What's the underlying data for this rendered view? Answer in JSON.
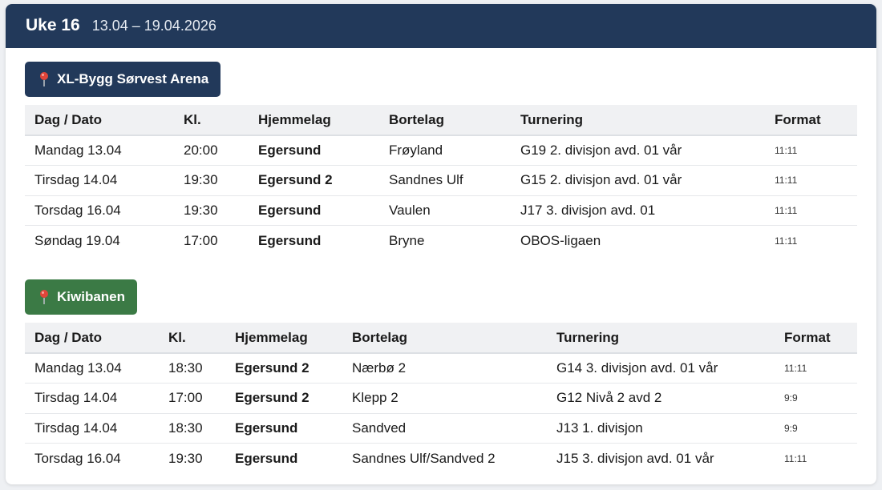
{
  "header": {
    "week": "Uke 16",
    "dates": "13.04 – 19.04.2026"
  },
  "venues": [
    {
      "name": "XL-Bygg Sørvest Arena",
      "color": "#22395a",
      "columns": [
        "Dag / Dato",
        "Kl.",
        "Hjemmelag",
        "Bortelag",
        "Turnering",
        "Format"
      ],
      "rows": [
        {
          "date": "Mandag 13.04",
          "time": "20:00",
          "home": "Egersund",
          "away": "Frøyland",
          "tournament": "G19 2. divisjon avd. 01 vår",
          "format": "11:11"
        },
        {
          "date": "Tirsdag 14.04",
          "time": "19:30",
          "home": "Egersund 2",
          "away": "Sandnes Ulf",
          "tournament": "G15 2. divisjon avd. 01 vår",
          "format": "11:11"
        },
        {
          "date": "Torsdag 16.04",
          "time": "19:30",
          "home": "Egersund",
          "away": "Vaulen",
          "tournament": "J17 3. divisjon avd. 01",
          "format": "11:11"
        },
        {
          "date": "Søndag 19.04",
          "time": "17:00",
          "home": "Egersund",
          "away": "Bryne",
          "tournament": "OBOS-ligaen",
          "format": "11:11"
        }
      ]
    },
    {
      "name": "Kiwibanen",
      "color": "#3b7a45",
      "columns": [
        "Dag / Dato",
        "Kl.",
        "Hjemmelag",
        "Bortelag",
        "Turnering",
        "Format"
      ],
      "rows": [
        {
          "date": "Mandag 13.04",
          "time": "18:30",
          "home": "Egersund 2",
          "away": "Nærbø 2",
          "tournament": "G14 3. divisjon avd. 01 vår",
          "format": "11:11"
        },
        {
          "date": "Tirsdag 14.04",
          "time": "17:00",
          "home": "Egersund 2",
          "away": "Klepp 2",
          "tournament": "G12 Nivå 2 avd 2",
          "format": "9:9"
        },
        {
          "date": "Tirsdag 14.04",
          "time": "18:30",
          "home": "Egersund",
          "away": "Sandved",
          "tournament": "J13 1. divisjon",
          "format": "9:9"
        },
        {
          "date": "Torsdag 16.04",
          "time": "19:30",
          "home": "Egersund",
          "away": "Sandnes Ulf/Sandved 2",
          "tournament": "J15 3. divisjon avd. 01 vår",
          "format": "11:11"
        }
      ]
    }
  ],
  "icons": {
    "venue_pin": "pin-icon"
  }
}
